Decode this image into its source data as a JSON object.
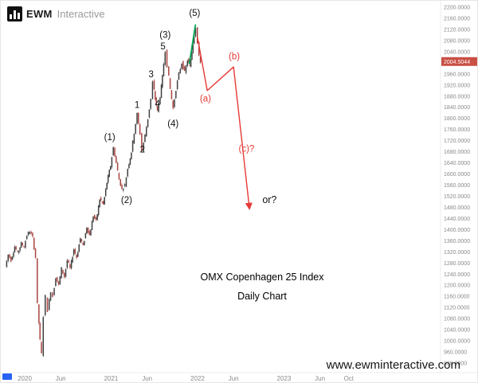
{
  "logo": {
    "brand_bold": "EWM",
    "brand_light": "Interactive"
  },
  "watermark": "www.ewminteractive.com",
  "colors": {
    "background": "#ffffff",
    "up_candle": "#3f3f3f",
    "down_candle": "#a8433f",
    "impulse_line": "#00a651",
    "projection": "#e53935",
    "projection_label": "#e53935",
    "wave_label": "#111111",
    "axis_text": "#8a8a8a",
    "last_price_bg": "#c94f44",
    "last_price_text": "#ffffff"
  },
  "chart_data": {
    "type": "candlestick",
    "title": "OMX Copenhagen 25 Index",
    "subtitle": "Daily Chart",
    "legend": "none",
    "grid": false,
    "y_axis": {
      "min": 920,
      "max": 2200,
      "tick_step": 40,
      "decimals": 4
    },
    "y_ticks": [
      2200,
      2160,
      2120,
      2080,
      2040,
      2000,
      1960,
      1920,
      1880,
      1840,
      1800,
      1760,
      1720,
      1680,
      1640,
      1600,
      1560,
      1520,
      1480,
      1440,
      1400,
      1360,
      1320,
      1280,
      1240,
      1200,
      1160,
      1120,
      1080,
      1040,
      1000,
      960,
      920
    ],
    "x_axis_labels": [
      {
        "label": "2020",
        "t": 0
      },
      {
        "label": "Jun",
        "t": 5
      },
      {
        "label": "2021",
        "t": 12
      },
      {
        "label": "Jun",
        "t": 17
      },
      {
        "label": "2022",
        "t": 24
      },
      {
        "label": "Jun",
        "t": 29
      },
      {
        "label": "2023",
        "t": 36
      },
      {
        "label": "Jun",
        "t": 41
      },
      {
        "label": "Oct",
        "t": 45
      }
    ],
    "last_price": "2004.5044",
    "price_path": [
      [
        -2.6,
        1265
      ],
      [
        -2.2,
        1310
      ],
      [
        -1.8,
        1290
      ],
      [
        -1.3,
        1340
      ],
      [
        -0.9,
        1315
      ],
      [
        -0.4,
        1350
      ],
      [
        0,
        1340
      ],
      [
        0.4,
        1380
      ],
      [
        0.8,
        1395
      ],
      [
        1.2,
        1370
      ],
      [
        1.6,
        1300
      ],
      [
        1.9,
        1130
      ],
      [
        2.2,
        1000
      ],
      [
        2.45,
        952
      ],
      [
        2.7,
        1090
      ],
      [
        3,
        1160
      ],
      [
        3.3,
        1110
      ],
      [
        3.7,
        1180
      ],
      [
        4,
        1160
      ],
      [
        4.4,
        1230
      ],
      [
        4.8,
        1200
      ],
      [
        5.2,
        1260
      ],
      [
        5.6,
        1230
      ],
      [
        6,
        1290
      ],
      [
        6.4,
        1260
      ],
      [
        6.9,
        1330
      ],
      [
        7.3,
        1300
      ],
      [
        7.8,
        1370
      ],
      [
        8.2,
        1340
      ],
      [
        8.7,
        1410
      ],
      [
        9.1,
        1380
      ],
      [
        9.6,
        1450
      ],
      [
        10,
        1430
      ],
      [
        10.5,
        1510
      ],
      [
        11,
        1490
      ],
      [
        11.5,
        1570
      ],
      [
        12,
        1630
      ],
      [
        12.4,
        1695
      ],
      [
        12.8,
        1640
      ],
      [
        13.2,
        1580
      ],
      [
        13.6,
        1545
      ],
      [
        14,
        1560
      ],
      [
        14.4,
        1620
      ],
      [
        14.9,
        1680
      ],
      [
        15.3,
        1750
      ],
      [
        15.7,
        1815
      ],
      [
        16.1,
        1745
      ],
      [
        16.4,
        1685
      ],
      [
        16.8,
        1740
      ],
      [
        17.2,
        1800
      ],
      [
        17.6,
        1870
      ],
      [
        17.9,
        1930
      ],
      [
        18.2,
        1870
      ],
      [
        18.5,
        1825
      ],
      [
        18.9,
        1880
      ],
      [
        19.2,
        1950
      ],
      [
        19.6,
        2045
      ],
      [
        19.9,
        1990
      ],
      [
        20.3,
        1905
      ],
      [
        20.7,
        1835
      ],
      [
        21.1,
        1905
      ],
      [
        21.5,
        1960
      ],
      [
        21.9,
        2000
      ],
      [
        22.3,
        1965
      ],
      [
        22.7,
        2010
      ],
      [
        23,
        1985
      ],
      [
        23.3,
        2040
      ],
      [
        23.6,
        2100
      ],
      [
        23.85,
        2130
      ],
      [
        24.1,
        2070
      ],
      [
        24.3,
        2020
      ],
      [
        24.5,
        2004.5
      ]
    ],
    "impulse_line": [
      [
        22.85,
        1995
      ],
      [
        23.72,
        2138
      ]
    ],
    "projection_path": [
      [
        24.0,
        2090
      ],
      [
        25.35,
        1900
      ],
      [
        29.0,
        1985
      ],
      [
        31.2,
        1478
      ]
    ],
    "wave_labels": [
      {
        "text": "(1)",
        "t": 11.8,
        "price": 1732,
        "kind": "black"
      },
      {
        "text": "(2)",
        "t": 14.15,
        "price": 1505,
        "kind": "black"
      },
      {
        "text": "1",
        "t": 15.6,
        "price": 1848,
        "kind": "black"
      },
      {
        "text": "2",
        "t": 16.35,
        "price": 1688,
        "kind": "black"
      },
      {
        "text": "3",
        "t": 17.55,
        "price": 1958,
        "kind": "black"
      },
      {
        "text": "4",
        "t": 18.45,
        "price": 1852,
        "kind": "black"
      },
      {
        "text": "5",
        "t": 19.2,
        "price": 2058,
        "kind": "black"
      },
      {
        "text": "(3)",
        "t": 19.5,
        "price": 2100,
        "kind": "black"
      },
      {
        "text": "(4)",
        "t": 20.6,
        "price": 1780,
        "kind": "black"
      },
      {
        "text": "(5)",
        "t": 23.6,
        "price": 2178,
        "kind": "black"
      },
      {
        "text": "(a)",
        "t": 25.1,
        "price": 1870,
        "kind": "red"
      },
      {
        "text": "(b)",
        "t": 29.1,
        "price": 2022,
        "kind": "red"
      },
      {
        "text": "(c)?",
        "t": 30.8,
        "price": 1690,
        "kind": "red"
      },
      {
        "text": "or?",
        "t": 34.0,
        "price": 1505,
        "kind": "annotation"
      }
    ]
  }
}
